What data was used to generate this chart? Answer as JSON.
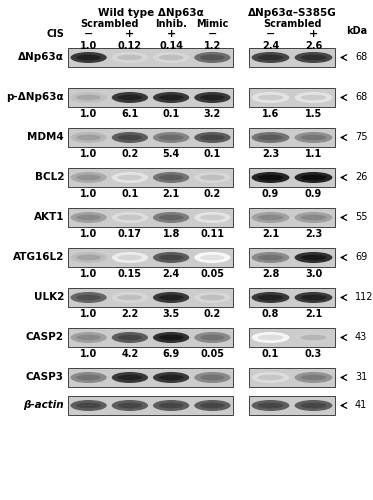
{
  "title_wt": "Wild type ΔNp63α",
  "title_mut": "ΔNp63α–S385G",
  "cis_wt": [
    "−",
    "+",
    "+",
    "−"
  ],
  "cis_mut": [
    "−",
    "+"
  ],
  "rows": [
    {
      "label": "ΔNp63α",
      "kda": "68",
      "values_wt": [
        1.0,
        0.12,
        0.14,
        1.2
      ],
      "values_mut": [
        2.4,
        2.6
      ],
      "bands_wt": [
        0.88,
        0.18,
        0.18,
        0.65
      ],
      "bands_mut": [
        0.82,
        0.82
      ],
      "show_values": true
    },
    {
      "label": "p-ΔNp63α",
      "kda": "68",
      "values_wt": [
        1.0,
        6.1,
        0.1,
        3.2
      ],
      "values_mut": [
        1.6,
        1.5
      ],
      "bands_wt": [
        0.28,
        0.88,
        0.88,
        0.88
      ],
      "bands_mut": [
        0.12,
        0.12
      ],
      "show_values": true
    },
    {
      "label": "MDM4",
      "kda": "75",
      "values_wt": [
        1.0,
        0.2,
        5.4,
        0.1
      ],
      "values_mut": [
        2.3,
        1.1
      ],
      "bands_wt": [
        0.32,
        0.72,
        0.55,
        0.72
      ],
      "bands_mut": [
        0.62,
        0.5
      ],
      "show_values": true
    },
    {
      "label": "BCL2",
      "kda": "26",
      "values_wt": [
        1.0,
        0.1,
        2.1,
        0.2
      ],
      "values_mut": [
        0.9,
        0.9
      ],
      "bands_wt": [
        0.38,
        0.12,
        0.62,
        0.18
      ],
      "bands_mut": [
        0.97,
        0.97
      ],
      "show_values": true
    },
    {
      "label": "AKT1",
      "kda": "55",
      "values_wt": [
        1.0,
        0.17,
        1.8,
        0.11
      ],
      "values_mut": [
        2.1,
        2.3
      ],
      "bands_wt": [
        0.42,
        0.15,
        0.58,
        0.12
      ],
      "bands_mut": [
        0.42,
        0.42
      ],
      "show_values": true
    },
    {
      "label": "ATG16L2",
      "kda": "69",
      "values_wt": [
        1.0,
        0.15,
        2.4,
        0.05
      ],
      "values_mut": [
        2.8,
        3.0
      ],
      "bands_wt": [
        0.3,
        0.08,
        0.72,
        0.03
      ],
      "bands_mut": [
        0.52,
        0.92
      ],
      "show_values": true
    },
    {
      "label": "ULK2",
      "kda": "112",
      "values_wt": [
        1.0,
        2.2,
        3.5,
        0.2
      ],
      "values_mut": [
        0.8,
        2.1
      ],
      "bands_wt": [
        0.68,
        0.18,
        0.88,
        0.18
      ],
      "bands_mut": [
        0.88,
        0.88
      ],
      "show_values": true
    },
    {
      "label": "CASP2",
      "kda": "43",
      "values_wt": [
        1.0,
        4.2,
        6.9,
        0.05
      ],
      "values_mut": [
        0.1,
        0.3
      ],
      "bands_wt": [
        0.42,
        0.72,
        0.92,
        0.52
      ],
      "bands_mut": [
        0.04,
        0.22
      ],
      "show_values": true
    },
    {
      "label": "CASP3",
      "kda": "31",
      "values_wt": [],
      "values_mut": [],
      "bands_wt": [
        0.52,
        0.88,
        0.88,
        0.52
      ],
      "bands_mut": [
        0.15,
        0.48
      ],
      "show_values": false
    },
    {
      "label": "β-actin",
      "kda": "41",
      "values_wt": [],
      "values_mut": [],
      "bands_wt": [
        0.72,
        0.72,
        0.72,
        0.72
      ],
      "bands_mut": [
        0.72,
        0.72
      ],
      "show_values": false
    }
  ]
}
